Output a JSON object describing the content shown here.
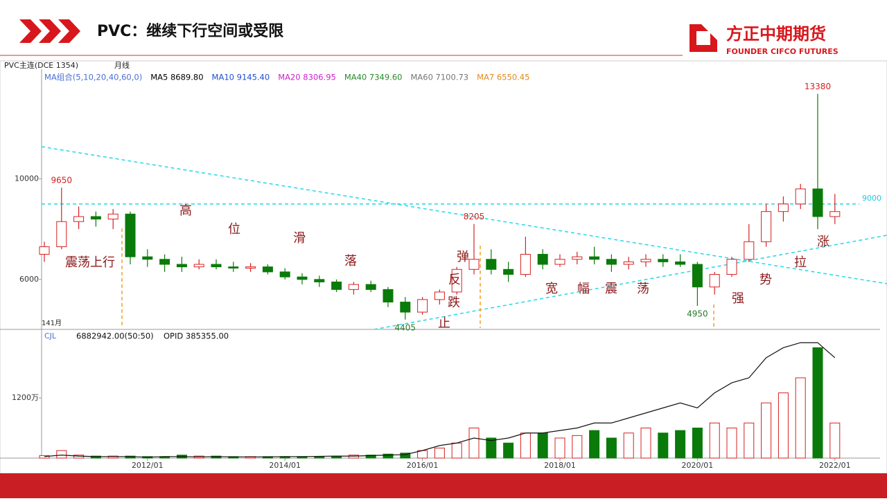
{
  "header": {
    "title": "PVC：继续下行空间或受限",
    "logo_cn": "方正中期期货",
    "logo_en": "FOUNDER CIFCO FUTURES"
  },
  "chart_data": {
    "type": "candlestick",
    "symbol": "PVC主连(DCE 1354)",
    "period": "月线",
    "ma_legend": [
      "MA组合(5,10,20,40,60,0)",
      "MA5 8689.80",
      "MA10 9145.40",
      "MA20 8306.95",
      "MA40 7349.60",
      "MA60 7100.73",
      "MA7 6550.45"
    ],
    "ma_colors": [
      "#4a6fd6",
      "#000000",
      "#1f4fd1",
      "#d020d0",
      "#2a8a2a",
      "#777777",
      "#e08a20"
    ],
    "bar_count_label": "141月",
    "annotations": [
      "震荡上行",
      "高",
      "位",
      "滑",
      "落",
      "反",
      "弹",
      "跌",
      "止",
      "宽",
      "幅",
      "震",
      "荡",
      "强",
      "势",
      "拉",
      "涨"
    ],
    "categories": [
      null,
      null,
      null,
      null,
      null,
      null,
      "2012/01",
      null,
      null,
      null,
      null,
      null,
      null,
      null,
      "2014/01",
      null,
      null,
      null,
      null,
      null,
      null,
      null,
      "2016/01",
      null,
      null,
      null,
      null,
      null,
      null,
      null,
      "2018/01",
      null,
      null,
      null,
      null,
      null,
      null,
      null,
      "2020/01",
      null,
      null,
      null,
      null,
      null,
      null,
      null,
      "2022/01"
    ],
    "open": [
      7000,
      7300,
      8300,
      8500,
      8400,
      8600,
      6900,
      6800,
      6600,
      6500,
      6600,
      6500,
      6450,
      6500,
      6300,
      6100,
      6000,
      5900,
      5600,
      5800,
      5600,
      5100,
      4700,
      5200,
      5500,
      6400,
      6800,
      6400,
      6200,
      7000,
      6600,
      6800,
      6900,
      6800,
      6600,
      6700,
      6800,
      6700,
      6600,
      5700,
      6200,
      6800,
      7500,
      8700,
      9000,
      9600,
      8500
    ],
    "high": [
      7500,
      9650,
      8900,
      8700,
      8800,
      8700,
      7200,
      7000,
      6900,
      6800,
      6800,
      6700,
      6650,
      6600,
      6450,
      6250,
      6150,
      6000,
      5900,
      5950,
      5700,
      5300,
      5300,
      5600,
      6500,
      8205,
      7200,
      6700,
      7700,
      7200,
      7000,
      7100,
      7300,
      7000,
      6900,
      7000,
      7000,
      7000,
      6700,
      6300,
      6900,
      8200,
      9000,
      9300,
      9800,
      13380,
      9400
    ],
    "low": [
      6700,
      7200,
      8000,
      8100,
      8000,
      6600,
      6500,
      6300,
      6300,
      6400,
      6400,
      6300,
      6300,
      6200,
      6000,
      5800,
      5700,
      5500,
      5400,
      5500,
      4900,
      4405,
      4600,
      5000,
      5400,
      6200,
      6200,
      5900,
      6100,
      6400,
      6500,
      6600,
      6600,
      6300,
      6400,
      6500,
      6500,
      6500,
      4950,
      5400,
      6100,
      6700,
      7300,
      8300,
      8800,
      8000,
      8200
    ],
    "close": [
      7300,
      8300,
      8500,
      8400,
      8600,
      6900,
      6800,
      6600,
      6500,
      6600,
      6500,
      6450,
      6500,
      6300,
      6100,
      6000,
      5900,
      5600,
      5800,
      5600,
      5100,
      4700,
      5200,
      5500,
      6400,
      6800,
      6400,
      6200,
      7000,
      6600,
      6800,
      6900,
      6800,
      6600,
      6700,
      6800,
      6700,
      6600,
      5700,
      6200,
      6800,
      7500,
      8700,
      9000,
      9600,
      8500,
      8700
    ],
    "up_color": "#d62020",
    "down_color": "#0a7a0a",
    "ylim": [
      4014,
      14359
    ],
    "yticks": [
      6000,
      10000
    ],
    "reference_line": 9000,
    "volume_panel": {
      "label": "CJL",
      "volume_text": "6882942.00(50:50)",
      "oi_text": "OPID 385355.00",
      "volume": [
        500000,
        1500000,
        600000,
        400000,
        400000,
        400000,
        300000,
        300000,
        600000,
        400000,
        400000,
        300000,
        300000,
        300000,
        300000,
        300000,
        300000,
        400000,
        600000,
        600000,
        800000,
        1000000,
        1500000,
        2000000,
        3000000,
        6000000,
        4000000,
        3000000,
        5000000,
        5000000,
        4000000,
        4500000,
        5500000,
        4000000,
        5000000,
        6000000,
        5000000,
        5500000,
        6000000,
        7000000,
        6000000,
        7000000,
        11000000,
        13000000,
        16000000,
        22000000,
        7000000
      ],
      "open_interest": [
        300000,
        600000,
        400000,
        300000,
        300000,
        300000,
        200000,
        300000,
        300000,
        250000,
        300000,
        250000,
        250000,
        250000,
        300000,
        300000,
        350000,
        400000,
        400000,
        500000,
        600000,
        700000,
        1500000,
        2500000,
        3000000,
        4000000,
        3500000,
        4000000,
        5000000,
        5000000,
        5500000,
        6000000,
        7000000,
        7000000,
        8000000,
        9000000,
        10000000,
        11000000,
        10000000,
        13000000,
        15000000,
        16000000,
        20000000,
        22000000,
        23000000,
        23000000,
        20000000
      ],
      "ylim": [
        0,
        25100000
      ],
      "yticks": [
        {
          "value": 12000000,
          "label": "1200万"
        }
      ]
    }
  }
}
